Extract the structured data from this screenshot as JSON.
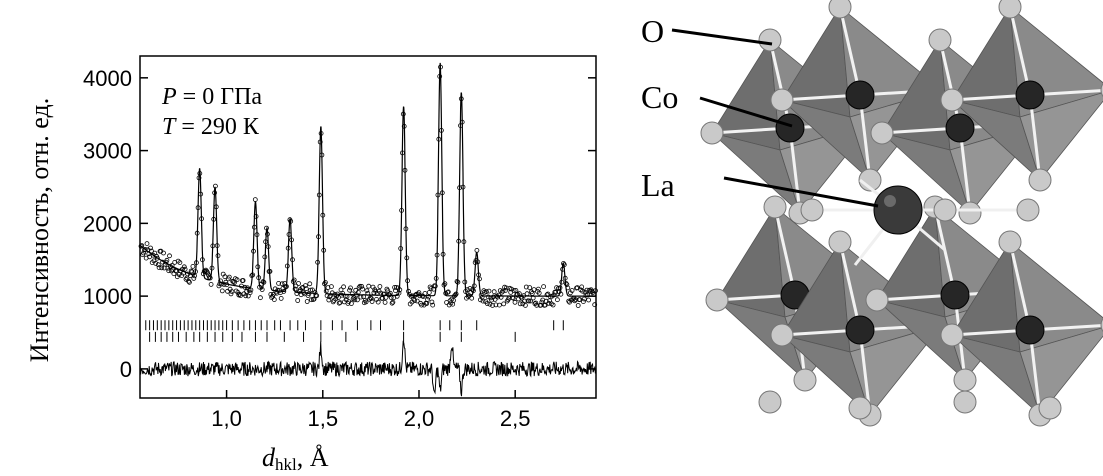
{
  "chart_data": {
    "type": "scatter",
    "ylabel": "Интенсивность, отн. ед.",
    "xlabel_symbol": "d",
    "xlabel_subscript": "hkl",
    "xlabel_unit": ", Å",
    "annotations": [
      {
        "italic": "P",
        "text": " = 0 ГПа"
      },
      {
        "italic": "T",
        "text": " = 290 К"
      }
    ],
    "xlim": [
      0.55,
      2.92
    ],
    "ylim": [
      -400,
      4300
    ],
    "xticks": [
      1.0,
      1.5,
      2.0,
      2.5
    ],
    "xtick_labels": [
      "1,0",
      "1,5",
      "2,0",
      "2,5"
    ],
    "yticks": [
      0,
      1000,
      2000,
      3000,
      4000
    ],
    "ytick_labels": [
      "0",
      "1000",
      "2000",
      "3000",
      "4000"
    ],
    "background": 1000,
    "peaks": [
      {
        "x": 0.86,
        "y": 2500
      },
      {
        "x": 0.94,
        "y": 2300
      },
      {
        "x": 1.15,
        "y": 2200
      },
      {
        "x": 1.21,
        "y": 1850
      },
      {
        "x": 1.33,
        "y": 2000
      },
      {
        "x": 1.49,
        "y": 3300
      },
      {
        "x": 1.92,
        "y": 3600
      },
      {
        "x": 2.11,
        "y": 4200
      },
      {
        "x": 2.22,
        "y": 3800
      },
      {
        "x": 2.3,
        "y": 1600
      },
      {
        "x": 2.75,
        "y": 1450
      }
    ],
    "tick_rows": [
      {
        "name": "row1",
        "y": 600,
        "positions": [
          0.58,
          0.6,
          0.62,
          0.64,
          0.66,
          0.68,
          0.7,
          0.72,
          0.74,
          0.76,
          0.78,
          0.8,
          0.82,
          0.84,
          0.86,
          0.88,
          0.9,
          0.92,
          0.94,
          0.96,
          0.98,
          1.0,
          1.03,
          1.06,
          1.09,
          1.12,
          1.15,
          1.18,
          1.21,
          1.25,
          1.28,
          1.33,
          1.37,
          1.41,
          1.49,
          1.55,
          1.6,
          1.68,
          1.75,
          1.8,
          1.92,
          2.11,
          2.16,
          2.22,
          2.3,
          2.7,
          2.75
        ]
      },
      {
        "name": "row2",
        "y": 440,
        "positions": [
          0.6,
          0.63,
          0.66,
          0.69,
          0.72,
          0.75,
          0.79,
          0.83,
          0.86,
          0.9,
          0.94,
          0.98,
          1.03,
          1.08,
          1.15,
          1.21,
          1.3,
          1.4,
          1.49,
          1.62,
          1.92,
          2.11,
          2.22,
          2.5
        ]
      }
    ],
    "residual_offset": 0,
    "residual_spikes": [
      {
        "x": 1.49,
        "y": 300
      },
      {
        "x": 1.92,
        "y": 450
      },
      {
        "x": 2.08,
        "y": -400
      },
      {
        "x": 2.11,
        "y": -300
      },
      {
        "x": 2.17,
        "y": 350
      },
      {
        "x": 2.22,
        "y": -300
      }
    ]
  },
  "structure": {
    "labels": {
      "O": "O",
      "Co": "Co",
      "La": "La"
    },
    "colors": {
      "octahedron": "#8a8a8a",
      "octahedron_dark": "#6e6e6e",
      "oxygen": "#c9c9c9",
      "cobalt": "#262626",
      "lanthanum": "#3a3a3a"
    }
  }
}
